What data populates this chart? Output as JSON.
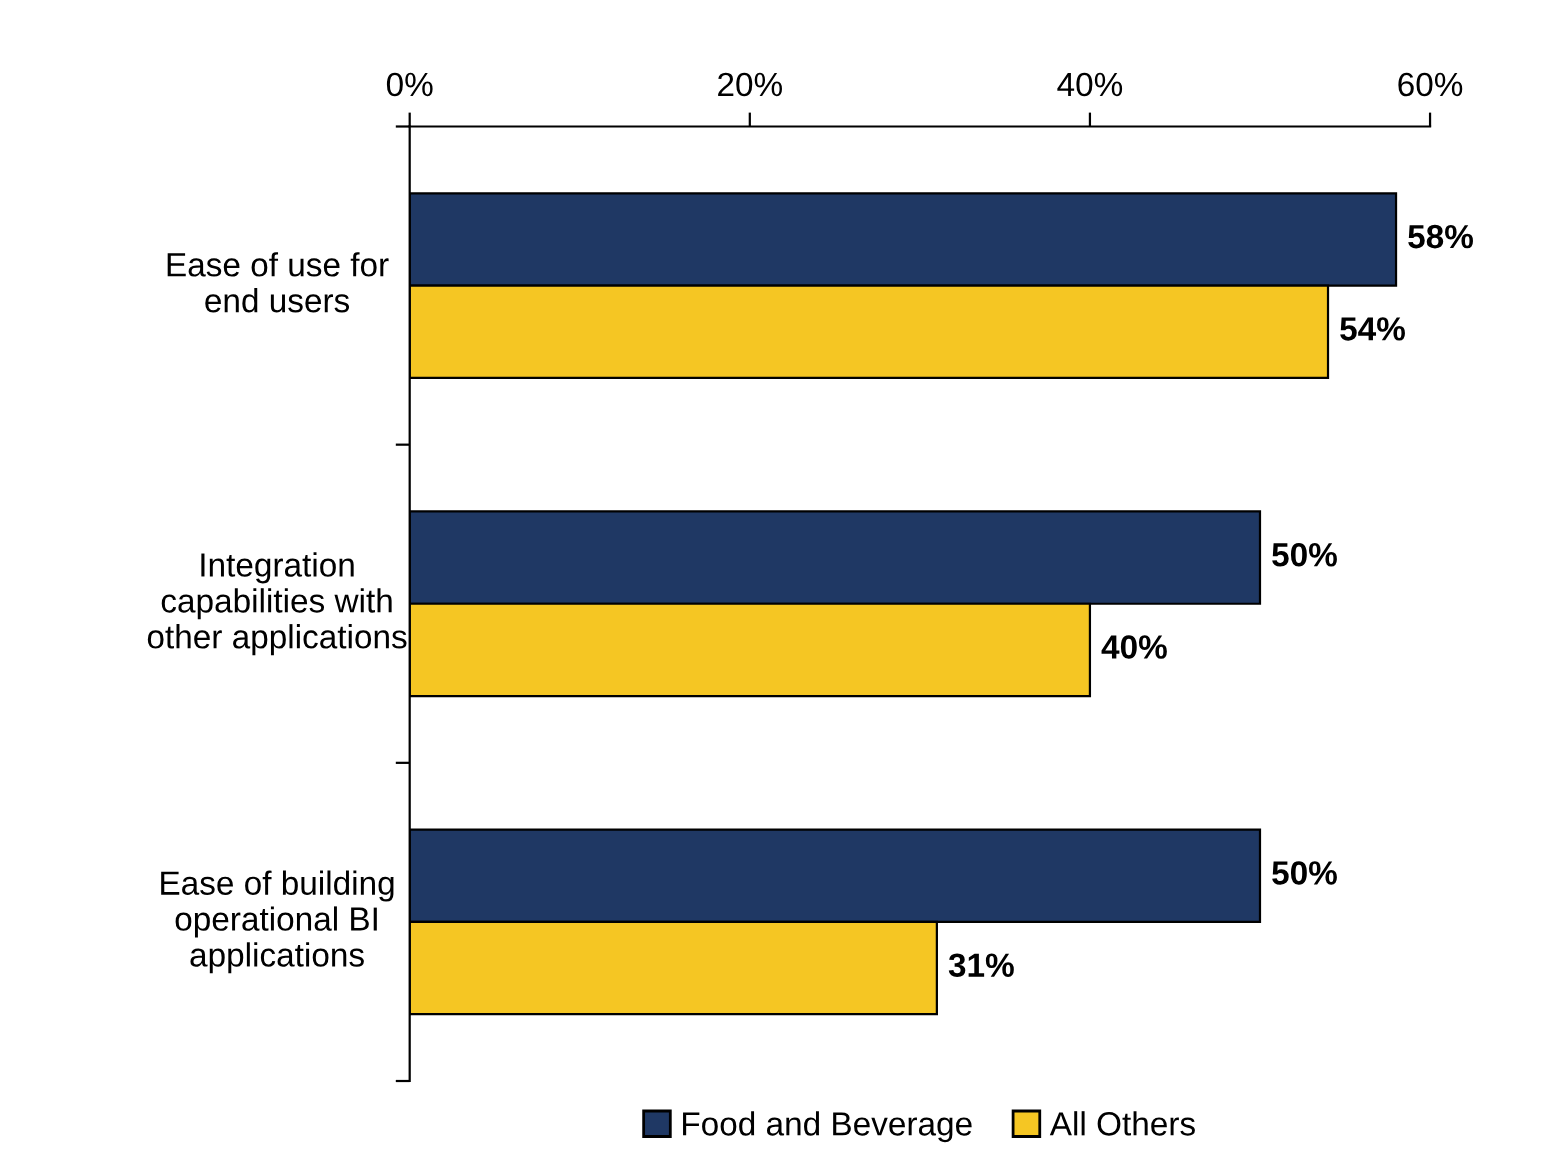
{
  "chart_data": {
    "type": "bar",
    "orientation": "horizontal",
    "categories": [
      "Ease of use for\nend users",
      "Integration\ncapabilities with\nother applications",
      "Ease of building\noperational BI\napplications"
    ],
    "series": [
      {
        "name": "Food and Beverage",
        "color": "#1f3864",
        "values": [
          58,
          50,
          50
        ],
        "value_labels": [
          "58%",
          "50%",
          "50%"
        ]
      },
      {
        "name": "All Others",
        "color": "#f5c623",
        "values": [
          54,
          40,
          31
        ],
        "value_labels": [
          "54%",
          "40%",
          "31%"
        ]
      }
    ],
    "xlim": [
      0,
      60
    ],
    "xticks": [
      {
        "value": 0,
        "label": "0%"
      },
      {
        "value": 20,
        "label": "20%"
      },
      {
        "value": 40,
        "label": "40%"
      },
      {
        "value": 60,
        "label": "60%"
      }
    ],
    "grid": false,
    "legend": "bottom"
  }
}
